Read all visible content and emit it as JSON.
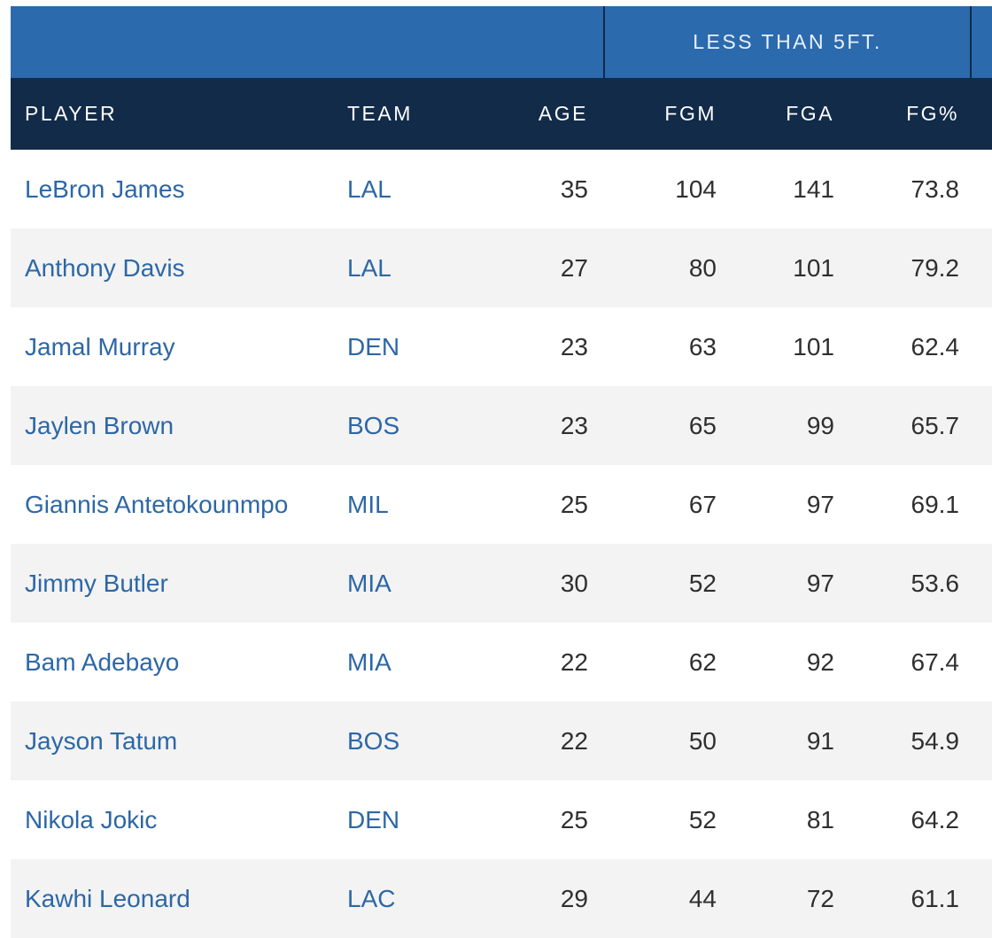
{
  "group_header": {
    "label": "LESS THAN 5FT."
  },
  "columns": {
    "player": "PLAYER",
    "team": "TEAM",
    "age": "AGE",
    "fgm": "FGM",
    "fga": "FGA",
    "fgp": "FG%"
  },
  "rows": [
    {
      "player": "LeBron James",
      "team": "LAL",
      "age": "35",
      "fgm": "104",
      "fga": "141",
      "fgp": "73.8"
    },
    {
      "player": "Anthony Davis",
      "team": "LAL",
      "age": "27",
      "fgm": "80",
      "fga": "101",
      "fgp": "79.2"
    },
    {
      "player": "Jamal Murray",
      "team": "DEN",
      "age": "23",
      "fgm": "63",
      "fga": "101",
      "fgp": "62.4"
    },
    {
      "player": "Jaylen Brown",
      "team": "BOS",
      "age": "23",
      "fgm": "65",
      "fga": "99",
      "fgp": "65.7"
    },
    {
      "player": "Giannis Antetokounmpo",
      "team": "MIL",
      "age": "25",
      "fgm": "67",
      "fga": "97",
      "fgp": "69.1"
    },
    {
      "player": "Jimmy Butler",
      "team": "MIA",
      "age": "30",
      "fgm": "52",
      "fga": "97",
      "fgp": "53.6"
    },
    {
      "player": "Bam Adebayo",
      "team": "MIA",
      "age": "22",
      "fgm": "62",
      "fga": "92",
      "fgp": "67.4"
    },
    {
      "player": "Jayson Tatum",
      "team": "BOS",
      "age": "22",
      "fgm": "50",
      "fga": "91",
      "fgp": "54.9"
    },
    {
      "player": "Nikola Jokic",
      "team": "DEN",
      "age": "25",
      "fgm": "52",
      "fga": "81",
      "fgp": "64.2"
    },
    {
      "player": "Kawhi Leonard",
      "team": "LAC",
      "age": "29",
      "fgm": "44",
      "fga": "72",
      "fgp": "61.1"
    }
  ],
  "colors": {
    "group_header_bg": "#2b6aad",
    "column_header_bg": "#122b48",
    "link": "#2d67a6",
    "alt_row_bg": "#f3f3f3"
  }
}
